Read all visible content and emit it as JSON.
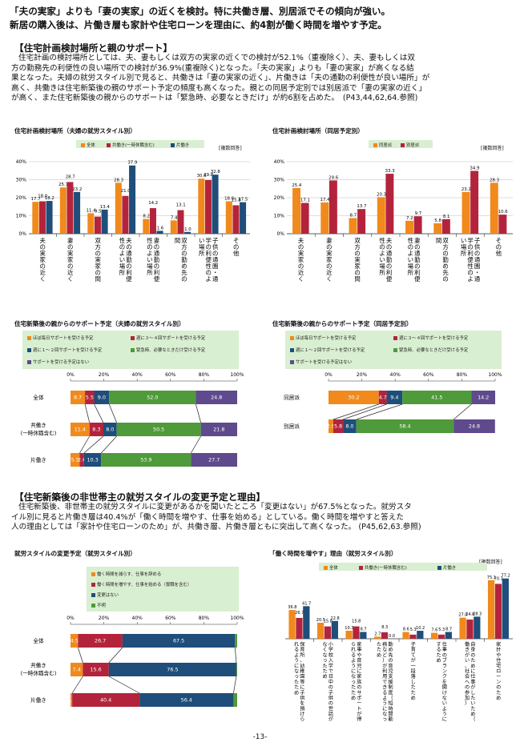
{
  "header": {
    "line1": "「夫の実家」よりも「妻の実家」の近くを検討。特に共働き層、別居派でその傾向が強い。",
    "line2": "新居の購入後は、片働き層も家計や住宅ローンを理由に、約4割が働く時間を増やす予定。"
  },
  "section1": {
    "title": "【住宅計画検討場所と親のサポート】",
    "lines": [
      "住宅計画の検討場所としては、夫、妻もしくは双方の実家の近くでの検討が52.1%（重複除く）、夫、妻もしくは双",
      "方の勤務先の利便性の良い場所での検討が36.9%(重複除く)となった。「夫の実家」よりも「妻の実家」が高くなる結",
      "果となった。夫婦の就労スタイル別で見ると、共働きは「妻の実家の近く」、片働きは「夫の通勤の利便性が良い場所」が",
      "高く、共働きは住宅新築後の親のサポート予定の頻度も高くなった。親との同居予定別では別居派で「妻の実家の近く」",
      "が高く、また住宅新築後の親からのサポートは「緊急時、必要なときだけ」が約6割を占めた。　(P43,44,62,64.参照)"
    ]
  },
  "section2": {
    "title": "【住宅新築後の非世帯主の就労スタイルの変更予定と理由】",
    "lines": [
      "住宅新築後、非世帯主の就労スタイルに変更があるかを聞いたところ「変更はない」が67.5%となった。就労スタ",
      "イル別に見ると片働き層は40.4%が「働く時間を増やす、仕事を始める」としている。働く時間を増やすと答えた",
      "人の理由としては「家計や住宅ローンのため」が、共働き層、片働き層ともに突出して高くなった。 (P45,62,63.参照)"
    ]
  },
  "footer": {
    "page": "-13-"
  },
  "colors": {
    "orange": "#f08a1c",
    "maroon": "#b3243c",
    "navy": "#1f4e7a",
    "green": "#4f9a3a",
    "purple": "#5e4a8c",
    "legend_bg": "#d9efd1"
  },
  "chart_data": [
    {
      "type": "bar",
      "title": "住宅計画検討場所（夫婦の就労スタイル別）",
      "note": "[複数回答]",
      "yticks": [
        "40%",
        "30%",
        "20%",
        "10%",
        "0%"
      ],
      "ylim": [
        0,
        40
      ],
      "legend": [
        "全体",
        "共働き(一時休職含む)",
        "片働き"
      ],
      "categories": [
        "夫の実家の近く",
        "妻の実家の近く",
        "双方の実家の間",
        "夫の通勤の利便性のよい場所",
        "妻の通勤の利便性のよい場所",
        "双方の勤め先の間",
        "子供の通園・通学の利便性のよい場所",
        "その他"
      ],
      "series": [
        {
          "name": "全体",
          "values": [
            17.7,
            25.7,
            11.4,
            28.3,
            8.2,
            7.4,
            30.6,
            18.0
          ],
          "labels": [
            "17.7",
            "25.7",
            "11.4",
            "28.3",
            "8.2",
            "7.4",
            "30.6",
            "18.0"
          ]
        },
        {
          "name": "共働き(一時休職含む)",
          "values": [
            18.0,
            28.7,
            9.5,
            21.0,
            14.2,
            13.1,
            29.8,
            15.8
          ],
          "labels": [
            "18.0",
            "28.7",
            "9.5",
            "21.0",
            "14.2",
            "13.1",
            "29.8",
            "15.8"
          ]
        },
        {
          "name": "片働き",
          "values": [
            18.2,
            23.2,
            13.4,
            37.9,
            1.6,
            1.0,
            32.8,
            17.5
          ],
          "labels": [
            "18.2",
            "23.2",
            "13.4",
            "37.9",
            "1.6",
            "1.0",
            "32.8",
            "17.5"
          ]
        }
      ]
    },
    {
      "type": "bar",
      "title": "住宅計画検討場所（同居予定別）",
      "note": "[複数回答]",
      "yticks": [
        "40%",
        "30%",
        "20%",
        "10%",
        "0%"
      ],
      "ylim": [
        0,
        40
      ],
      "legend": [
        "同居派",
        "別居派"
      ],
      "categories": [
        "夫の実家の近く",
        "妻の実家の近く",
        "双方の実家の間",
        "夫の通勤の利便性のよい場所",
        "妻の通勤の利便性のよい場所",
        "双方の勤め先の間",
        "子供の通園・通学の利便性のよい場所",
        "その他"
      ],
      "series": [
        {
          "name": "同居派",
          "values": [
            25.4,
            17.4,
            8.7,
            20.3,
            7.2,
            5.8,
            23.2,
            28.3
          ],
          "labels": [
            "25.4",
            "17.4",
            "8.7",
            "20.3",
            "7.2",
            "5.8",
            "23.2",
            "28.3"
          ]
        },
        {
          "name": "別居派",
          "values": [
            17.1,
            29.6,
            13.7,
            33.3,
            9.7,
            8.1,
            34.9,
            10.6
          ],
          "labels": [
            "17.1",
            "29.6",
            "13.7",
            "33.3",
            "9.7",
            "8.1",
            "34.9",
            "10.6"
          ]
        }
      ]
    },
    {
      "type": "bar",
      "stacked": true,
      "title": "住宅新築後の親からのサポート予定（夫婦の就労スタイル別）",
      "xticks": [
        "0%",
        "20%",
        "40%",
        "60%",
        "80%",
        "100%"
      ],
      "legend": [
        "ほぼ毎日サポートを受ける予定",
        "週に３～４回サポートを受ける予定",
        "週に１～２回サポートを受ける予定",
        "緊急時、必要なときだけ受ける予定",
        "サポートを受ける予定はない"
      ],
      "rows": [
        {
          "label": "全体",
          "label2": "",
          "values": [
            8.7,
            5.5,
            9.0,
            52.0,
            24.8
          ],
          "labels": [
            "8.7",
            "5.5",
            "9.0",
            "52.0",
            "24.8"
          ]
        },
        {
          "label": "共働き",
          "label2": "(一時休職含む)",
          "values": [
            11.4,
            8.3,
            8.0,
            50.5,
            21.8
          ],
          "labels": [
            "11.4",
            "8.3",
            "8.0",
            "50.5",
            "21.8"
          ]
        },
        {
          "label": "片働き",
          "label2": "",
          "values": [
            5.5,
            2.6,
            10.3,
            53.9,
            27.7
          ],
          "labels": [
            "5.5",
            "2.6",
            "10.3",
            "53.9",
            "27.7"
          ]
        }
      ]
    },
    {
      "type": "bar",
      "stacked": true,
      "title": "住宅新築後の親からのサポート予定（同居予定別）",
      "xticks": [
        "0%",
        "20%",
        "40%",
        "60%",
        "80%",
        "100%"
      ],
      "legend": [
        "ほぼ毎日サポートを受ける予定",
        "週に３～４回サポートを受ける予定",
        "週に１～２回サポートを受ける予定",
        "緊急時、必要なときだけ受ける予定",
        "サポートを受ける予定はない"
      ],
      "rows": [
        {
          "label": "同居派",
          "label2": "",
          "values": [
            30.2,
            4.7,
            9.4,
            41.5,
            14.2
          ],
          "labels": [
            "30.2",
            "4.7",
            "9.4",
            "41.5",
            "14.2"
          ]
        },
        {
          "label": "別居派",
          "label2": "",
          "values": [
            2.9,
            5.8,
            8.0,
            58.4,
            24.8
          ],
          "labels": [
            "2.9",
            "5.8",
            "8.0",
            "58.4",
            "24.8"
          ]
        }
      ]
    },
    {
      "type": "bar",
      "stacked": true,
      "title": "就労スタイルの変更予定（就労スタイル別）",
      "xticks": [
        "0%",
        "20%",
        "40%",
        "60%",
        "80%",
        "100%"
      ],
      "legend": [
        "働く時間を減らす、仕事を辞める",
        "働く時間を増やす、仕事を始める（復職を含む）",
        "変更はない",
        "不明"
      ],
      "rows": [
        {
          "label": "全体",
          "label2": "",
          "values": [
            4.5,
            26.7,
            67.5,
            1.3
          ],
          "labels": [
            "4.5",
            "26.7",
            "67.5",
            ""
          ]
        },
        {
          "label": "共働き",
          "label2": "(一時休職含む)",
          "values": [
            7.4,
            15.6,
            76.5,
            0.5
          ],
          "labels": [
            "7.4",
            "15.6",
            "76.5",
            ""
          ]
        },
        {
          "label": "片働き",
          "label2": "",
          "values": [
            1.0,
            40.4,
            56.4,
            2.2
          ],
          "labels": [
            "1.0",
            "40.4",
            "56.4",
            ""
          ]
        }
      ]
    },
    {
      "type": "bar",
      "title": "「働く時間を増やす」理由（就労スタイル別）",
      "note": "[複数回答]",
      "ylim": [
        0,
        80
      ],
      "legend": [
        "全体",
        "共働き(一時休職含む)",
        "片働き"
      ],
      "categories": [
        "保育所、幼稚園等に子供を預けられるようになったため",
        "小学校入学で日中の子供の世話がなくなったため",
        "家事や育児に家族のサポートが得られるようになったため",
        "勤め先の育児支援制度（短時間勤務など）が利用できるようになったため",
        "子育てが一段落したため",
        "仕事のブランクを開けないようにするため",
        "自身のために仕事がしたいため（働きがい、社会への参加）",
        "家計や住宅ローンのため"
      ],
      "series": [
        {
          "name": "全体",
          "values": [
            36.8,
            20.5,
            10.3,
            2.7,
            8.6,
            7.6,
            27.0,
            75.1
          ],
          "labels": [
            "36.8",
            "20.5",
            "10.3",
            "2.7",
            "8.6",
            "7.6",
            "27.0",
            "75.1"
          ]
        },
        {
          "name": "共働き(一時休職含む)",
          "values": [
            26.7,
            15.8,
            15.8,
            8.3,
            5.3,
            5.3,
            24.6,
            70.3
          ],
          "labels": [
            "26.7",
            "15.8",
            "15.8",
            "8.3",
            "5.3",
            "5.3",
            "24.6",
            "70.3"
          ]
        },
        {
          "name": "片働き",
          "values": [
            41.7,
            22.8,
            8.7,
            0.0,
            10.2,
            8.7,
            28.3,
            77.2
          ],
          "labels": [
            "41.7",
            "22.8",
            "8.7",
            "0.0",
            "10.2",
            "8.7",
            "28.3",
            "77.2"
          ]
        }
      ]
    }
  ]
}
